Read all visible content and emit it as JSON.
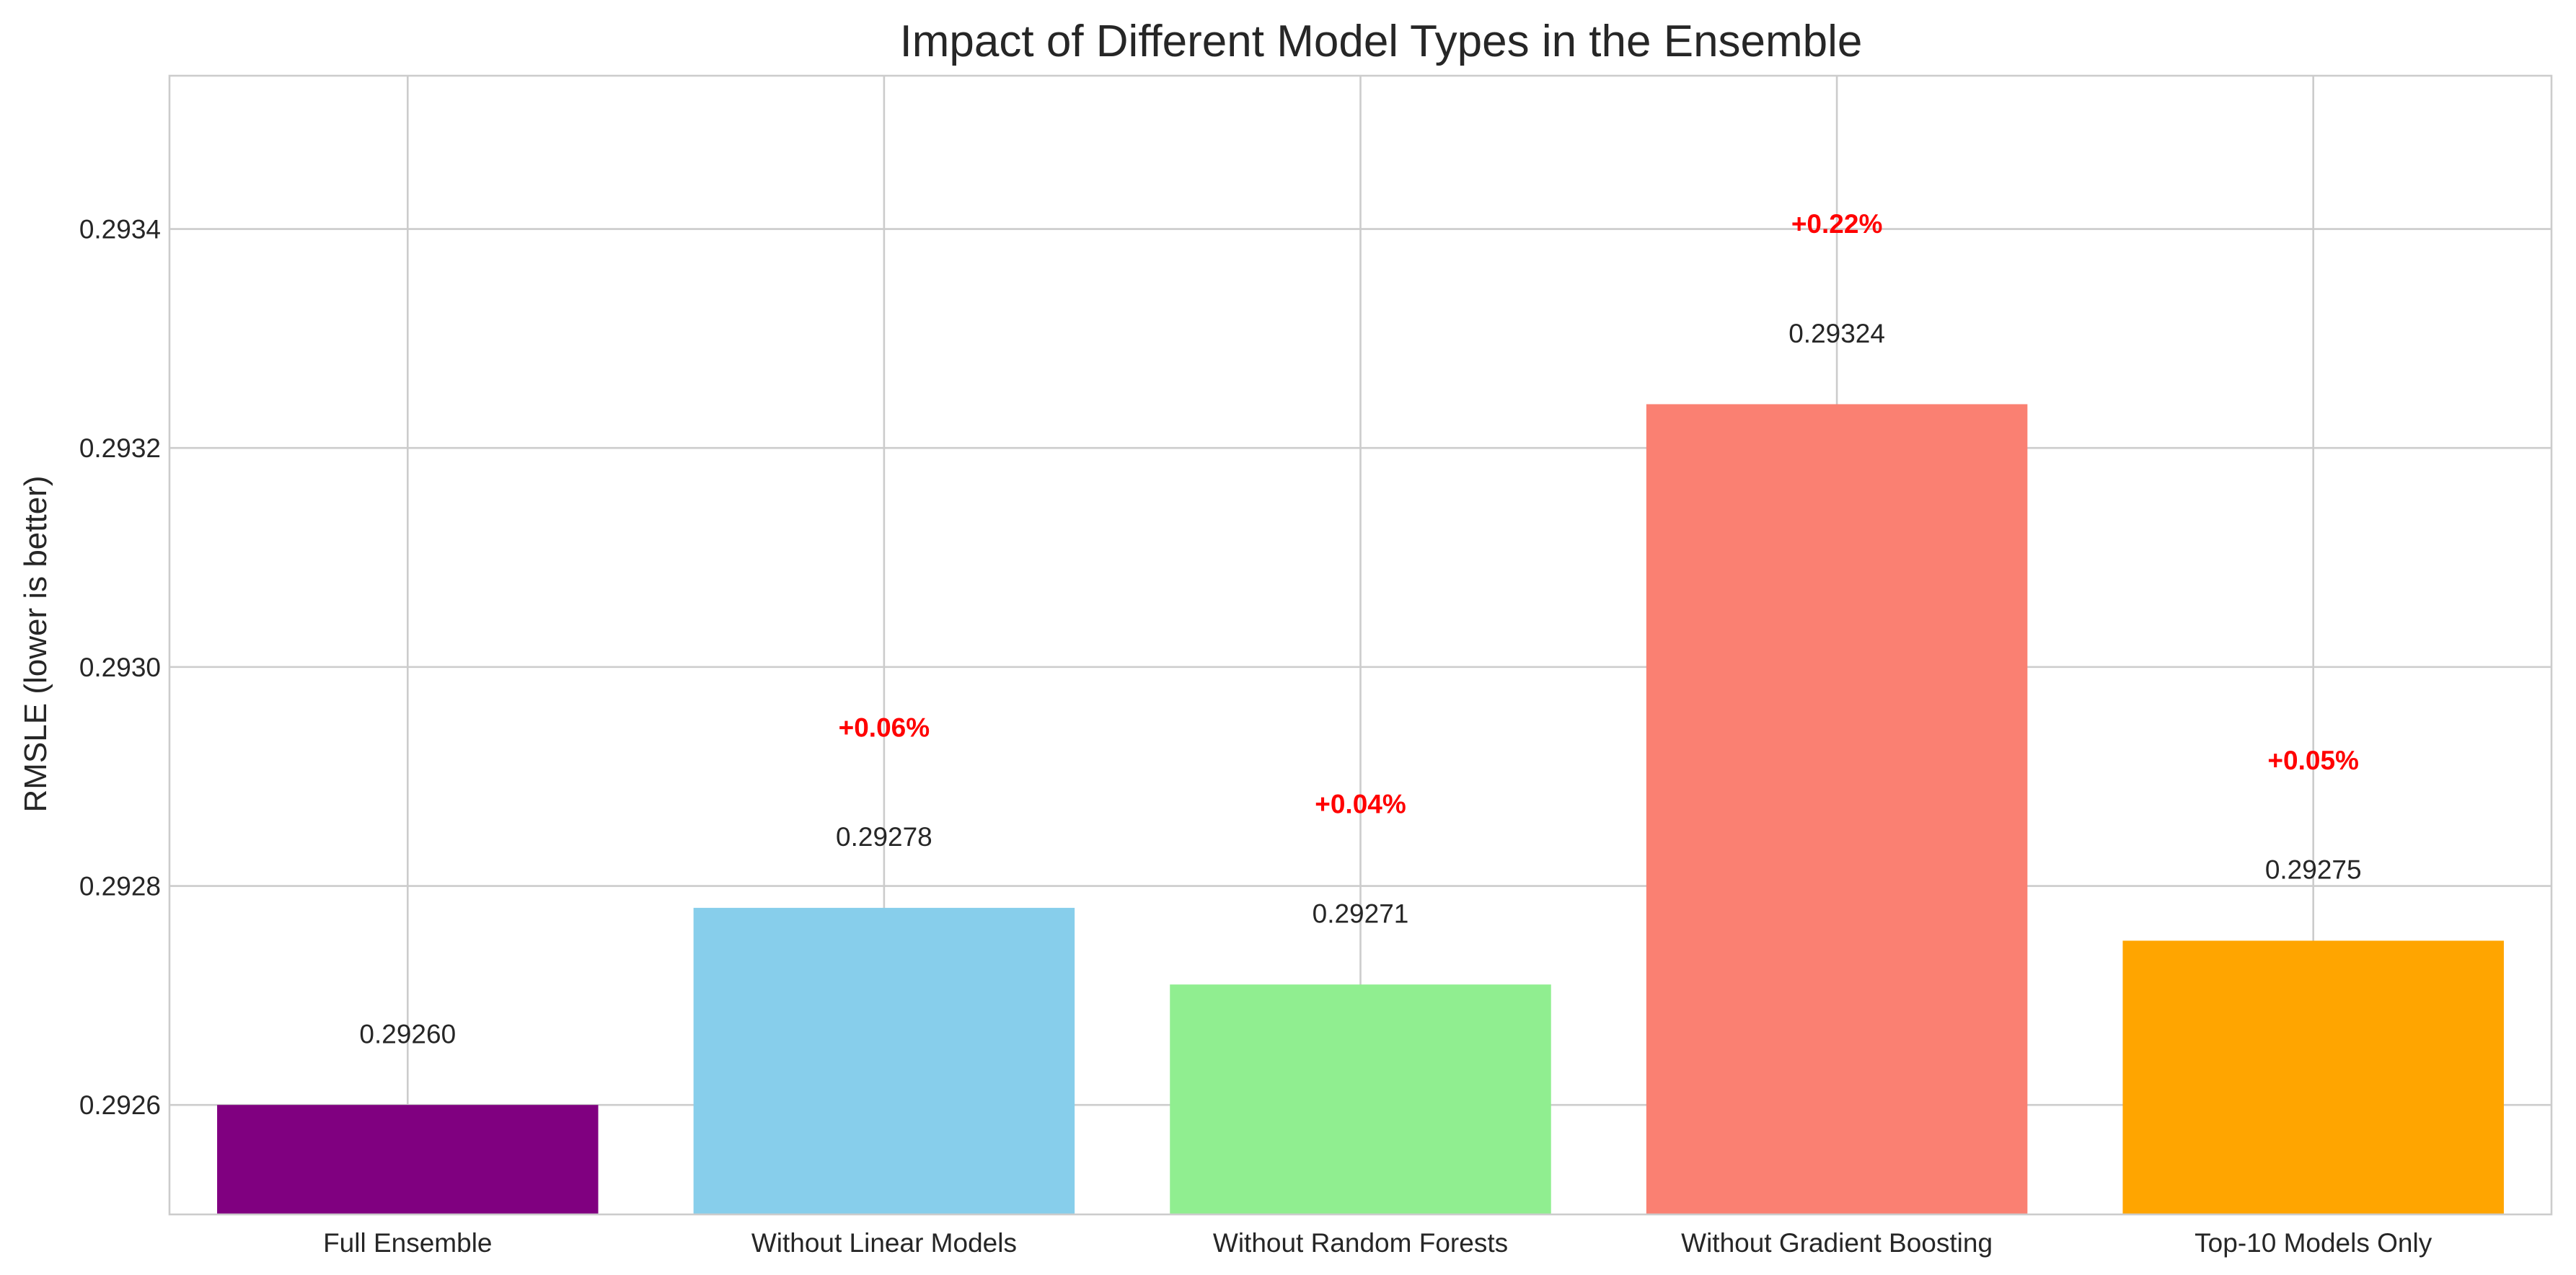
{
  "chart_data": {
    "type": "bar",
    "title": "Impact of Different Model Types in the Ensemble",
    "xlabel": "",
    "ylabel": "RMSLE (lower is better)",
    "categories": [
      "Full Ensemble",
      "Without Linear Models",
      "Without Random Forests",
      "Without Gradient Boosting",
      "Top-10 Models Only"
    ],
    "values": [
      0.2926,
      0.29278,
      0.29271,
      0.29324,
      0.29275
    ],
    "value_labels": [
      "0.29260",
      "0.29278",
      "0.29271",
      "0.29324",
      "0.29275"
    ],
    "change_labels": [
      "",
      "+0.06%",
      "+0.04%",
      "+0.22%",
      "+0.05%"
    ],
    "colors": [
      "#800080",
      "#87ceeb",
      "#90ee90",
      "#fa8072",
      "#ffa500"
    ],
    "change_color": "#ff0000",
    "ylim": [
      0.2925,
      0.29354
    ],
    "yticks": [
      0.2926,
      0.2928,
      0.293,
      0.2932,
      0.2934
    ],
    "ytick_labels": [
      "0.2926",
      "0.2928",
      "0.2930",
      "0.2932",
      "0.2934"
    ],
    "grid": true,
    "legend": "none"
  }
}
